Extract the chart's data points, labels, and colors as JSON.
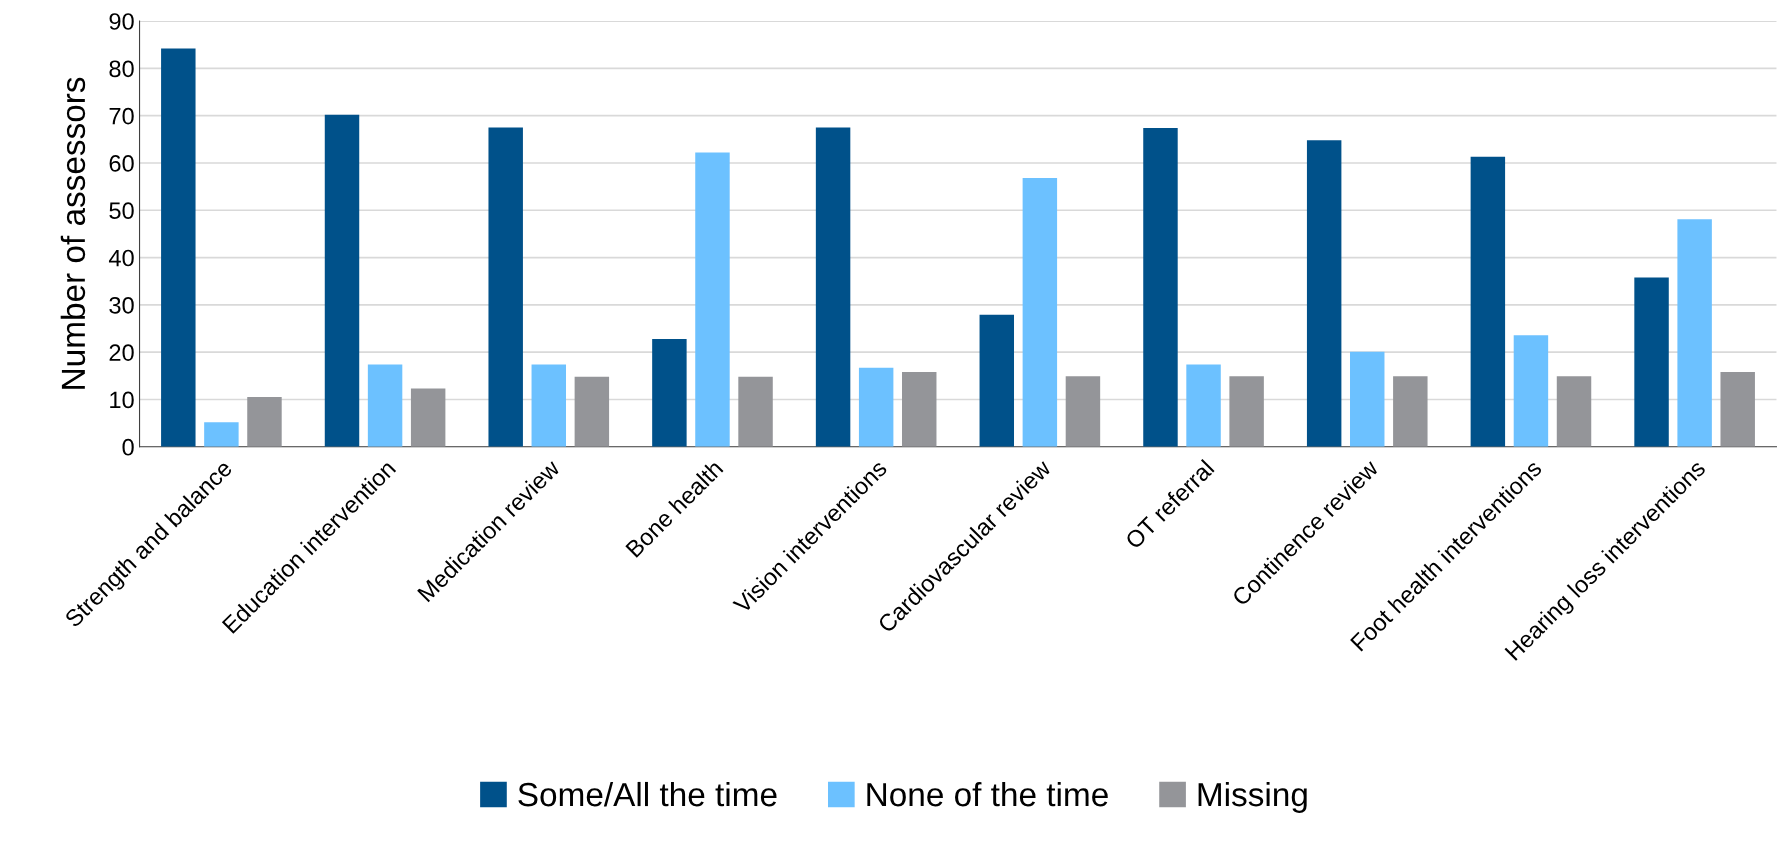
{
  "chart_data": {
    "type": "bar",
    "ylabel": "Number of assessors",
    "categories": [
      "Strength and balance",
      "Education intervention",
      "Medication review",
      "Bone health",
      "Vision interventions",
      "Cardiovascular review",
      "OT referral",
      "Continence review",
      "Foot health interventions",
      "Hearing loss interventions"
    ],
    "series": [
      {
        "name": "Some/All the time",
        "color": "#00518a",
        "values": [
          84.2,
          70.2,
          67.5,
          22.8,
          67.5,
          27.9,
          67.4,
          64.8,
          61.3,
          35.8
        ]
      },
      {
        "name": "None of the time",
        "color": "#6cc1ff",
        "values": [
          5.2,
          17.4,
          17.4,
          62.2,
          16.7,
          56.8,
          17.4,
          20.1,
          23.6,
          48.1
        ]
      },
      {
        "name": "Missing",
        "color": "#949599",
        "values": [
          10.5,
          12.3,
          14.8,
          14.8,
          15.8,
          14.9,
          14.9,
          14.9,
          14.9,
          15.8
        ]
      }
    ],
    "ylim": [
      0,
      90
    ],
    "yticks": [
      0,
      10,
      20,
      30,
      40,
      50,
      60,
      70,
      80,
      90
    ],
    "grid": "y",
    "legend": "bottom"
  }
}
